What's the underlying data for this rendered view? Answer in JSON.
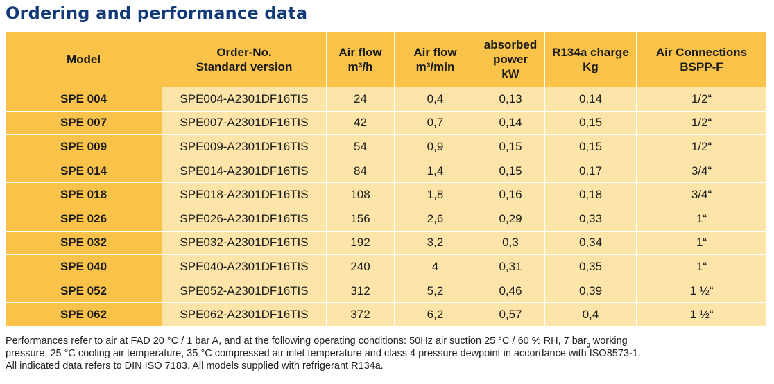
{
  "title": "Ordering and performance data",
  "table": {
    "headers": [
      [
        "Model"
      ],
      [
        "Order-No.",
        "Standard version"
      ],
      [
        "Air flow",
        "m³/h"
      ],
      [
        "Air flow",
        "m³/min"
      ],
      [
        "absorbed",
        "power",
        "kW"
      ],
      [
        "R134a charge",
        "Kg"
      ],
      [
        "Air Connections",
        "BSPP-F"
      ]
    ],
    "rows": [
      [
        "SPE 004",
        "SPE004-A2301DF16TIS",
        "24",
        "0,4",
        "0,13",
        "0,14",
        "1/2“"
      ],
      [
        "SPE 007",
        "SPE007-A2301DF16TIS",
        "42",
        "0,7",
        "0,14",
        "0,15",
        "1/2“"
      ],
      [
        "SPE 009",
        "SPE009-A2301DF16TIS",
        "54",
        "0,9",
        "0,15",
        "0,15",
        "1/2“"
      ],
      [
        "SPE 014",
        "SPE014-A2301DF16TIS",
        "84",
        "1,4",
        "0,15",
        "0,17",
        "3/4“"
      ],
      [
        "SPE 018",
        "SPE018-A2301DF16TIS",
        "108",
        "1,8",
        "0,16",
        "0,18",
        "3/4“"
      ],
      [
        "SPE 026",
        "SPE026-A2301DF16TIS",
        "156",
        "2,6",
        "0,29",
        "0,33",
        "1“"
      ],
      [
        "SPE 032",
        "SPE032-A2301DF16TIS",
        "192",
        "3,2",
        "0,3",
        "0,34",
        "1“"
      ],
      [
        "SPE 040",
        "SPE040-A2301DF16TIS",
        "240",
        "4",
        "0,31",
        "0,35",
        "1“"
      ],
      [
        "SPE 052",
        "SPE052-A2301DF16TIS",
        "312",
        "5,2",
        "0,46",
        "0,39",
        "1 ½“"
      ],
      [
        "SPE 062",
        "SPE062-A2301DF16TIS",
        "372",
        "6,2",
        "0,57",
        "0,4",
        "1 ½“"
      ]
    ]
  },
  "notes": {
    "line1_a": "Performances refer to air at FAD 20 °C / 1 bar A, and at the following operating conditions: 50Hz air suction 25 °C / 60 % RH, 7 bar",
    "line1_sub": "g",
    "line1_b": " working",
    "line2": "pressure, 25 °C cooling air temperature, 35 °C compressed air inlet temperature and class 4 pressure dewpoint in accordance with ISO8573-1.",
    "line3": "All indicated data refers to DIN ISO 7183. All models supplied with refrigerant R134a."
  },
  "colors": {
    "title": "#123a78",
    "header_bg": "#f9c34a",
    "row_bg": "#fde5aa"
  }
}
